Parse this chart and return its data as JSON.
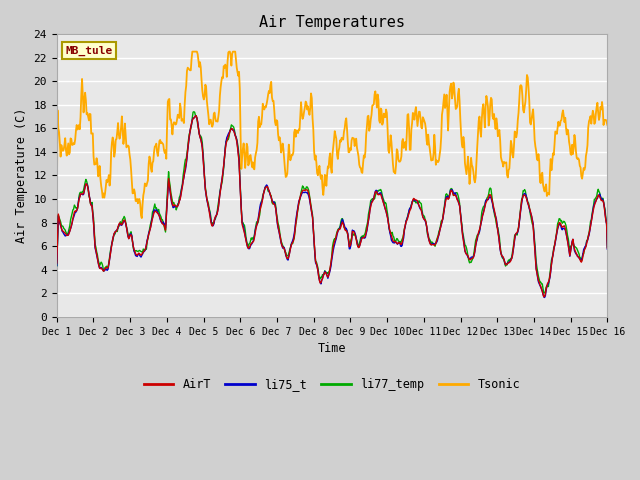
{
  "title": "Air Temperatures",
  "xlabel": "Time",
  "ylabel": "Air Temperature (C)",
  "ylim": [
    0,
    24
  ],
  "xlim": [
    0,
    15
  ],
  "xtick_labels": [
    "Dec 1",
    "Dec 2",
    "Dec 3",
    "Dec 4",
    "Dec 5",
    "Dec 6",
    "Dec 7",
    "Dec 8",
    "Dec 9",
    "Dec 10",
    "Dec 11",
    "Dec 12",
    "Dec 13",
    "Dec 14",
    "Dec 15",
    "Dec 16"
  ],
  "ytick_values": [
    0,
    2,
    4,
    6,
    8,
    10,
    12,
    14,
    16,
    18,
    20,
    22,
    24
  ],
  "colors": {
    "AirT": "#cc0000",
    "li75_t": "#0000cc",
    "li77_temp": "#00aa00",
    "Tsonic": "#ffaa00"
  },
  "lw": 1.0,
  "fig_bg": "#d0d0d0",
  "plot_bg": "#e8e8e8",
  "grid_color": "#ffffff",
  "annotation_text": "MB_tule",
  "annotation_fg": "#880000",
  "annotation_bg": "#ffffcc",
  "annotation_border": "#aa9900"
}
